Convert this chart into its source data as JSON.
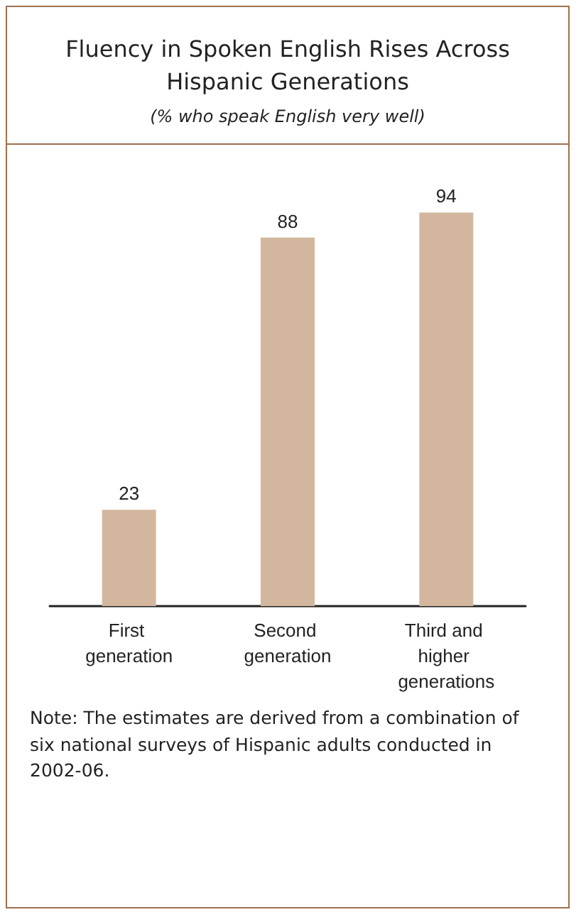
{
  "chart_data": {
    "type": "bar",
    "title": "Fluency in Spoken English Rises Across Hispanic Generations",
    "subtitle": "(% who speak English very well)",
    "categories": [
      "First generation",
      "Second generation",
      "Third and higher generations"
    ],
    "values": [
      23,
      88,
      94
    ],
    "color": "#d2b79e",
    "data_labels": true,
    "annotations": [
      "Note: The estimates are derived from a combination of six national surveys of Hispanic adults conducted in 2002-06."
    ]
  }
}
